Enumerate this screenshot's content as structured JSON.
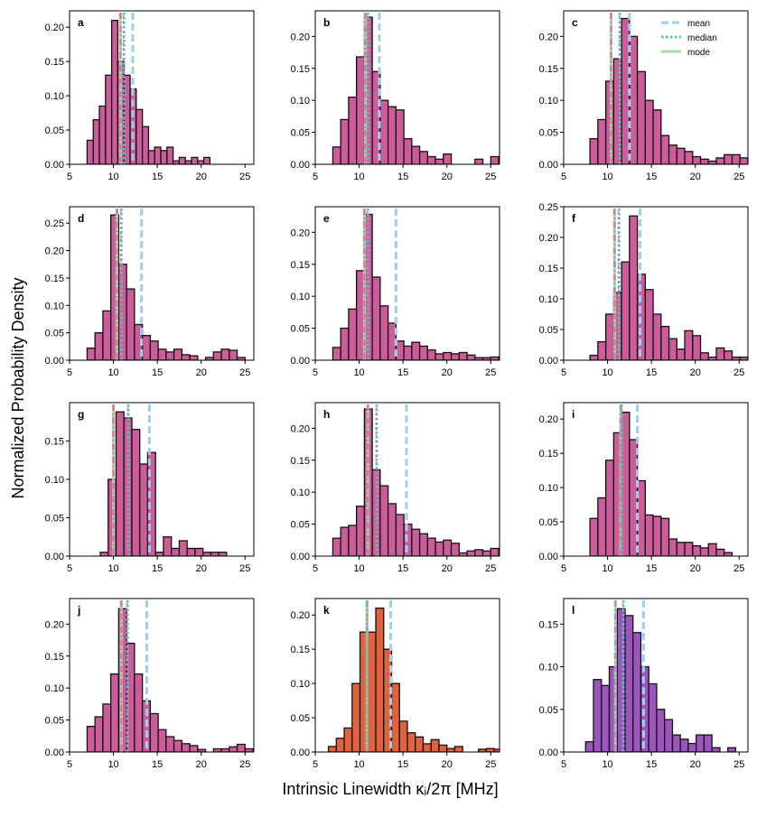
{
  "figure": {
    "ylabel": "Normalized Probability Density",
    "xlabel": "Intrinsic Linewidth κᵢ/2π [MHz]"
  },
  "legend": {
    "panel": "c",
    "entries": [
      {
        "key": "mean",
        "label": "mean",
        "style": "dashed",
        "color": "#9ecfef"
      },
      {
        "key": "median",
        "label": "median",
        "style": "dotted",
        "color": "#57c4c0"
      },
      {
        "key": "mode",
        "label": "mode",
        "style": "solid",
        "color": "#a8d8a3"
      }
    ]
  },
  "colors": {
    "pink": "#cc5c9a",
    "orange": "#e0633f",
    "purple": "#9c55bd",
    "pink_stat": "#d96aa7",
    "orange_stat": "#f08a6e",
    "purple_stat": "#b57ed5",
    "edge": "#111111"
  },
  "chart_data": [
    {
      "label": "a",
      "type": "bar",
      "color": "pink",
      "xlim": [
        5,
        26
      ],
      "xticks": [
        5,
        10,
        15,
        20,
        25
      ],
      "ylim": [
        0,
        0.224
      ],
      "yticks": [
        "0.00",
        "0.05",
        "0.10",
        "0.15",
        "0.20"
      ],
      "bin_start": 7,
      "bin_width": 0.7,
      "values": [
        0.035,
        0.065,
        0.085,
        0.13,
        0.21,
        0.15,
        0.13,
        0.11,
        0.08,
        0.055,
        0.02,
        0.025,
        0.02,
        0.025,
        0.005,
        0.01,
        0.005,
        0.01,
        0.005,
        0.01
      ],
      "mean": 12.2,
      "median": 11.2,
      "mode": 10.8
    },
    {
      "label": "b",
      "type": "bar",
      "color": "pink",
      "xlim": [
        5,
        26
      ],
      "xticks": [
        5,
        10,
        15,
        20,
        25
      ],
      "ylim": [
        0,
        0.24
      ],
      "yticks": [
        "0.00",
        "0.05",
        "0.10",
        "0.15",
        "0.20"
      ],
      "bin_start": 7,
      "bin_width": 0.9,
      "values": [
        0.027,
        0.07,
        0.105,
        0.168,
        0.23,
        0.145,
        0.1,
        0.09,
        0.085,
        0.04,
        0.028,
        0.02,
        0.012,
        0.008,
        0.016,
        0,
        0,
        0,
        0.008,
        0,
        0.012
      ],
      "mean": 12.3,
      "median": 11.0,
      "mode": 10.7
    },
    {
      "label": "c",
      "type": "bar",
      "color": "pink",
      "xlim": [
        5,
        26
      ],
      "xticks": [
        5,
        10,
        15,
        20,
        25
      ],
      "ylim": [
        0,
        0.24
      ],
      "yticks": [
        "0.00",
        "0.05",
        "0.10",
        "0.15",
        "0.20"
      ],
      "bin_start": 8,
      "bin_width": 0.9,
      "values": [
        0.04,
        0.07,
        0.13,
        0.165,
        0.228,
        0.2,
        0.145,
        0.1,
        0.085,
        0.045,
        0.03,
        0.025,
        0.02,
        0.012,
        0.008,
        0.005,
        0.01,
        0.015,
        0.015,
        0.01,
        0.01,
        0.005,
        0.005
      ],
      "mean": 12.5,
      "median": 11.4,
      "mode": 10.4
    },
    {
      "label": "d",
      "type": "bar",
      "color": "pink",
      "xlim": [
        5,
        26
      ],
      "xticks": [
        5,
        10,
        15,
        20,
        25
      ],
      "ylim": [
        0,
        0.28
      ],
      "yticks": [
        "0.00",
        "0.05",
        "0.10",
        "0.15",
        "0.20",
        "0.25"
      ],
      "bin_start": 7,
      "bin_width": 0.9,
      "values": [
        0.022,
        0.05,
        0.09,
        0.265,
        0.175,
        0.13,
        0.065,
        0.045,
        0.035,
        0.02,
        0.015,
        0.02,
        0.01,
        0.008,
        0,
        0.005,
        0.015,
        0.02,
        0.018,
        0.005
      ],
      "mean": 13.2,
      "median": 10.9,
      "mode": 10.4
    },
    {
      "label": "e",
      "type": "bar",
      "color": "pink",
      "xlim": [
        5,
        26
      ],
      "xticks": [
        5,
        10,
        15,
        20,
        25
      ],
      "ylim": [
        0,
        0.24
      ],
      "yticks": [
        "0.00",
        "0.05",
        "0.10",
        "0.15",
        "0.20"
      ],
      "bin_start": 7,
      "bin_width": 0.9,
      "values": [
        0.02,
        0.05,
        0.08,
        0.14,
        0.228,
        0.13,
        0.085,
        0.058,
        0.03,
        0.022,
        0.028,
        0.022,
        0.016,
        0.01,
        0.012,
        0.01,
        0.012,
        0.008,
        0.004,
        0.004,
        0.005
      ],
      "mean": 14.2,
      "median": 11.0,
      "mode": 10.6
    },
    {
      "label": "f",
      "type": "bar",
      "color": "pink",
      "xlim": [
        5,
        26
      ],
      "xticks": [
        5,
        10,
        15,
        20,
        25
      ],
      "ylim": [
        0,
        0.25
      ],
      "yticks": [
        "0.00",
        "0.05",
        "0.10",
        "0.15",
        "0.20",
        "0.25"
      ],
      "bin_start": 8,
      "bin_width": 0.9,
      "values": [
        0.008,
        0.03,
        0.075,
        0.11,
        0.16,
        0.235,
        0.14,
        0.115,
        0.075,
        0.055,
        0.035,
        0.018,
        0.048,
        0.04,
        0.012,
        0.005,
        0.02,
        0.015,
        0.005,
        0.005,
        0.005
      ],
      "mean": 13.7,
      "median": 11.3,
      "mode": 10.8
    },
    {
      "label": "g",
      "type": "bar",
      "color": "pink",
      "xlim": [
        5,
        26
      ],
      "xticks": [
        5,
        10,
        15,
        20,
        25
      ],
      "ylim": [
        0,
        0.2
      ],
      "yticks": [
        "0.00",
        "0.05",
        "0.10",
        "0.15"
      ],
      "bin_start": 8.5,
      "bin_width": 0.9,
      "values": [
        0.005,
        0.1,
        0.188,
        0.18,
        0.165,
        0.12,
        0.135,
        0.005,
        0.025,
        0.01,
        0.02,
        0.01,
        0.01,
        0.005,
        0.005,
        0.005
      ],
      "mean": 14.1,
      "median": 11.7,
      "mode": 10.0
    },
    {
      "label": "h",
      "type": "bar",
      "color": "pink",
      "xlim": [
        5,
        26
      ],
      "xticks": [
        5,
        10,
        15,
        20,
        25
      ],
      "ylim": [
        0,
        0.24
      ],
      "yticks": [
        "0.00",
        "0.05",
        "0.10",
        "0.15",
        "0.20"
      ],
      "bin_start": 7,
      "bin_width": 0.9,
      "values": [
        0.028,
        0.045,
        0.048,
        0.078,
        0.23,
        0.135,
        0.11,
        0.082,
        0.065,
        0.05,
        0.042,
        0.035,
        0.028,
        0.022,
        0.025,
        0.02,
        0.005,
        0.008,
        0.01,
        0.008,
        0.012
      ],
      "mean": 15.4,
      "median": 12.0,
      "mode": 11.0
    },
    {
      "label": "i",
      "type": "bar",
      "color": "pink",
      "xlim": [
        5,
        26
      ],
      "xticks": [
        5,
        10,
        15,
        20,
        25
      ],
      "ylim": [
        0,
        0.224
      ],
      "yticks": [
        "0.00",
        "0.05",
        "0.10",
        "0.15",
        "0.20"
      ],
      "bin_start": 8,
      "bin_width": 0.9,
      "values": [
        0.055,
        0.085,
        0.14,
        0.18,
        0.21,
        0.17,
        0.11,
        0.06,
        0.058,
        0.055,
        0.025,
        0.02,
        0.02,
        0.015,
        0.012,
        0.018,
        0.01,
        0.005
      ],
      "mean": 13.4,
      "median": 11.6,
      "mode": 11.5
    },
    {
      "label": "j",
      "type": "bar",
      "color": "pink",
      "xlim": [
        5,
        26
      ],
      "xticks": [
        5,
        10,
        15,
        20,
        25
      ],
      "ylim": [
        0,
        0.24
      ],
      "yticks": [
        "0.00",
        "0.05",
        "0.10",
        "0.15",
        "0.20"
      ],
      "bin_start": 7,
      "bin_width": 0.9,
      "values": [
        0.04,
        0.055,
        0.075,
        0.122,
        0.224,
        0.17,
        0.122,
        0.08,
        0.06,
        0.035,
        0.024,
        0.018,
        0.013,
        0.01,
        0.004,
        0,
        0.005,
        0.005,
        0.008,
        0.012,
        0.005
      ],
      "mean": 13.8,
      "median": 11.6,
      "mode": 10.9
    },
    {
      "label": "k",
      "type": "bar",
      "color": "orange",
      "xlim": [
        5,
        26
      ],
      "xticks": [
        5,
        10,
        15,
        20,
        25
      ],
      "ylim": [
        0,
        0.224
      ],
      "yticks": [
        "0.00",
        "0.05",
        "0.10",
        "0.15",
        "0.20"
      ],
      "bin_start": 6.5,
      "bin_width": 0.9,
      "values": [
        0.008,
        0.02,
        0.035,
        0.1,
        0.175,
        0.175,
        0.21,
        0.15,
        0.1,
        0.045,
        0.028,
        0.022,
        0.012,
        0.018,
        0.01,
        0.005,
        0.008,
        0,
        0,
        0.004,
        0.005,
        0.004
      ],
      "mean": 13.6,
      "median": 10.9,
      "mode": 10.9
    },
    {
      "label": "l",
      "type": "bar",
      "color": "purple",
      "xlim": [
        5,
        26
      ],
      "xticks": [
        5,
        10,
        15,
        20,
        25
      ],
      "ylim": [
        0,
        0.18
      ],
      "yticks": [
        "0.00",
        "0.05",
        "0.10",
        "0.15"
      ],
      "bin_start": 7.5,
      "bin_width": 0.9,
      "values": [
        0.012,
        0.085,
        0.078,
        0.1,
        0.168,
        0.16,
        0.14,
        0.1,
        0.08,
        0.05,
        0.038,
        0.02,
        0.015,
        0.01,
        0.02,
        0.02,
        0.005,
        0,
        0.005
      ],
      "mean": 14.1,
      "median": 11.8,
      "mode": 10.9
    }
  ]
}
